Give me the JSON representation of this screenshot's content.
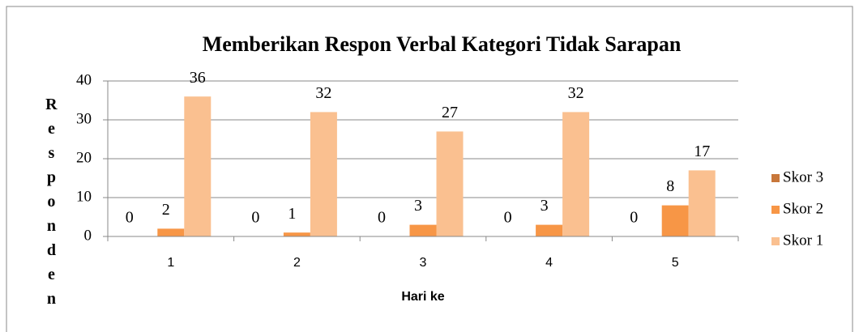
{
  "chart_data": {
    "type": "bar",
    "title": "Memberikan Respon Verbal Kategori Tidak Sarapan",
    "x_label": "Hari ke",
    "y_label": "Responden",
    "categories": [
      "1",
      "2",
      "3",
      "4",
      "5"
    ],
    "series": [
      {
        "name": "Skor 3",
        "color": "#c8773a",
        "values": [
          0,
          0,
          0,
          0,
          0
        ]
      },
      {
        "name": "Skor 2",
        "color": "#f79646",
        "values": [
          2,
          1,
          3,
          3,
          8
        ]
      },
      {
        "name": "Skor 1",
        "color": "#fac090",
        "values": [
          36,
          32,
          27,
          32,
          17
        ]
      }
    ],
    "ylim": [
      0,
      40
    ],
    "yticks": [
      0,
      10,
      20,
      30,
      40
    ],
    "grid": true,
    "legend": "right"
  }
}
